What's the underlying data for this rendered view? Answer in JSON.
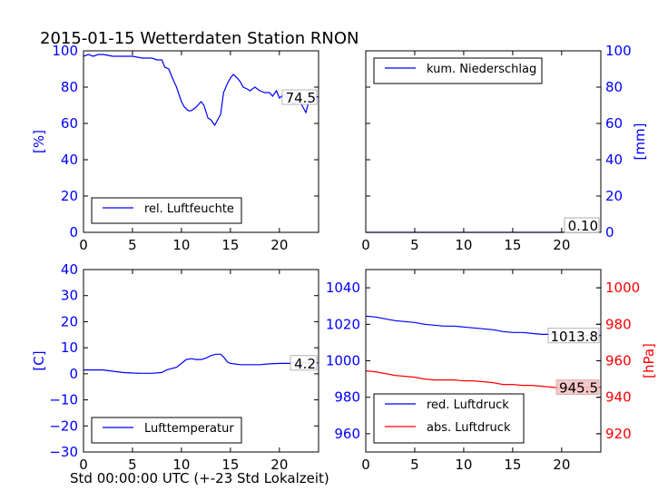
{
  "title": "2015-01-15 Wetterdaten Station RNON",
  "xlabel": "Std 00:00:00 UTC (+-23 Std Lokalzeit)",
  "colors": {
    "blue": "#0000ff",
    "red": "#ff0000",
    "black": "#000000"
  },
  "chart_data": [
    {
      "type": "line",
      "id": "humidity",
      "xlim": [
        0,
        24
      ],
      "ylim": [
        0,
        100
      ],
      "xticks": [
        0,
        5,
        10,
        15,
        20
      ],
      "yticks": [
        0,
        20,
        40,
        60,
        80,
        100
      ],
      "ylabel": "[%]",
      "legend_position": "lower-left",
      "annotation": "74.5",
      "series": [
        {
          "name": "rel. Luftfeuchte",
          "color": "#0000ff",
          "points": [
            [
              0,
              97
            ],
            [
              0.5,
              98
            ],
            [
              1,
              97
            ],
            [
              1.5,
              98
            ],
            [
              2,
              98
            ],
            [
              3,
              97
            ],
            [
              4,
              97
            ],
            [
              5,
              97
            ],
            [
              6,
              96
            ],
            [
              7,
              96
            ],
            [
              7.5,
              95
            ],
            [
              8,
              95
            ],
            [
              8.3,
              91
            ],
            [
              8.7,
              90
            ],
            [
              9,
              86
            ],
            [
              9.5,
              80
            ],
            [
              10,
              72
            ],
            [
              10.3,
              69
            ],
            [
              10.7,
              67
            ],
            [
              11,
              67
            ],
            [
              11.5,
              69
            ],
            [
              12,
              72
            ],
            [
              12.3,
              70
            ],
            [
              12.7,
              63
            ],
            [
              13,
              62
            ],
            [
              13.4,
              59
            ],
            [
              13.7,
              62
            ],
            [
              14,
              65
            ],
            [
              14.3,
              77
            ],
            [
              14.7,
              82
            ],
            [
              15,
              85
            ],
            [
              15.3,
              87
            ],
            [
              15.7,
              85
            ],
            [
              16,
              83
            ],
            [
              16.3,
              80
            ],
            [
              16.7,
              79
            ],
            [
              17,
              78
            ],
            [
              17.5,
              80
            ],
            [
              18,
              78
            ],
            [
              18.5,
              77
            ],
            [
              19,
              77
            ],
            [
              19.3,
              75
            ],
            [
              19.7,
              78
            ],
            [
              20,
              74
            ],
            [
              20.5,
              76
            ],
            [
              21,
              73
            ],
            [
              21.5,
              71
            ],
            [
              22,
              73
            ],
            [
              22.3,
              70
            ],
            [
              22.7,
              66
            ],
            [
              23,
              72
            ],
            [
              23.3,
              74
            ],
            [
              23.7,
              75
            ],
            [
              24,
              74.5
            ]
          ]
        }
      ]
    },
    {
      "type": "line",
      "id": "precip",
      "xlim": [
        0,
        24
      ],
      "ylim": [
        0,
        100
      ],
      "xticks": [
        0,
        5,
        10,
        15,
        20
      ],
      "yticks": [
        0,
        20,
        40,
        60,
        80,
        100
      ],
      "ylabel": "[mm]",
      "legend_position": "upper-left",
      "annotation": "0.10",
      "series": [
        {
          "name": "kum. Niederschlag",
          "color": "#0000ff",
          "points": [
            [
              0,
              0
            ],
            [
              20,
              0
            ],
            [
              20.5,
              0.1
            ],
            [
              24,
              0.1
            ]
          ]
        }
      ]
    },
    {
      "type": "line",
      "id": "temperature",
      "xlim": [
        0,
        24
      ],
      "ylim": [
        -30,
        40
      ],
      "xticks": [
        0,
        5,
        10,
        15,
        20
      ],
      "yticks": [
        -30,
        -20,
        -10,
        0,
        10,
        20,
        30,
        40
      ],
      "ylabel": "[C]",
      "legend_position": "lower-left",
      "annotation": "4.2",
      "series": [
        {
          "name": "Lufttemperatur",
          "color": "#0000ff",
          "points": [
            [
              0,
              1.5
            ],
            [
              1,
              1.5
            ],
            [
              2,
              1.5
            ],
            [
              3,
              1
            ],
            [
              4,
              0.5
            ],
            [
              5,
              0.3
            ],
            [
              6,
              0.2
            ],
            [
              7,
              0.2
            ],
            [
              8,
              0.5
            ],
            [
              8.5,
              1.5
            ],
            [
              9,
              2
            ],
            [
              9.5,
              2.5
            ],
            [
              10,
              4
            ],
            [
              10.5,
              5.5
            ],
            [
              11,
              5.8
            ],
            [
              11.5,
              5.5
            ],
            [
              12,
              5.5
            ],
            [
              12.5,
              6
            ],
            [
              13,
              7
            ],
            [
              13.5,
              7.5
            ],
            [
              14,
              7.5
            ],
            [
              14.3,
              6.5
            ],
            [
              14.7,
              4.5
            ],
            [
              15,
              4
            ],
            [
              16,
              3.5
            ],
            [
              17,
              3.5
            ],
            [
              18,
              3.5
            ],
            [
              19,
              3.8
            ],
            [
              20,
              4
            ],
            [
              21,
              4
            ],
            [
              22,
              4.2
            ],
            [
              23,
              4.2
            ],
            [
              24,
              4.2
            ]
          ]
        }
      ]
    },
    {
      "type": "line",
      "id": "pressure",
      "xlim": [
        0,
        24
      ],
      "ylim": [
        950,
        1050
      ],
      "y2lim": [
        910,
        1010
      ],
      "xticks": [
        0,
        5,
        10,
        15,
        20
      ],
      "yticks": [
        960,
        980,
        1000,
        1020,
        1040
      ],
      "y2ticks": [
        920,
        940,
        960,
        980,
        1000
      ],
      "ylabel": "",
      "y2label": "[hPa]",
      "legend_position": "lower-left",
      "annotation": "1013.8",
      "annotation2": "945.5",
      "series": [
        {
          "name": "red. Luftdruck",
          "color": "#0000ff",
          "axis": "left",
          "points": [
            [
              0,
              1024.5
            ],
            [
              1,
              1024
            ],
            [
              2,
              1023
            ],
            [
              3,
              1022
            ],
            [
              4,
              1021.5
            ],
            [
              5,
              1021
            ],
            [
              6,
              1020
            ],
            [
              7,
              1019.5
            ],
            [
              8,
              1019
            ],
            [
              9,
              1019
            ],
            [
              10,
              1018.5
            ],
            [
              11,
              1018
            ],
            [
              12,
              1017.5
            ],
            [
              13,
              1017
            ],
            [
              14,
              1016
            ],
            [
              15,
              1015.5
            ],
            [
              16,
              1015.5
            ],
            [
              17,
              1015
            ],
            [
              18,
              1014.5
            ],
            [
              19,
              1014.5
            ],
            [
              20,
              1014
            ],
            [
              21,
              1013.5
            ],
            [
              22,
              1013.5
            ],
            [
              23,
              1014
            ],
            [
              24,
              1013.8
            ]
          ]
        },
        {
          "name": "abs. Luftdruck",
          "color": "#ff0000",
          "axis": "right",
          "points": [
            [
              0,
              954.5
            ],
            [
              1,
              954
            ],
            [
              2,
              953
            ],
            [
              3,
              952
            ],
            [
              4,
              951.5
            ],
            [
              5,
              951
            ],
            [
              6,
              950
            ],
            [
              7,
              949.5
            ],
            [
              8,
              949.5
            ],
            [
              9,
              949.5
            ],
            [
              10,
              949
            ],
            [
              11,
              949
            ],
            [
              12,
              948.5
            ],
            [
              13,
              948
            ],
            [
              14,
              947
            ],
            [
              15,
              947
            ],
            [
              16,
              946.5
            ],
            [
              17,
              946.5
            ],
            [
              18,
              946
            ],
            [
              19,
              945.5
            ],
            [
              20,
              945
            ],
            [
              21,
              945
            ],
            [
              22,
              945
            ],
            [
              23,
              945.5
            ],
            [
              24,
              945.5
            ]
          ]
        }
      ]
    }
  ]
}
